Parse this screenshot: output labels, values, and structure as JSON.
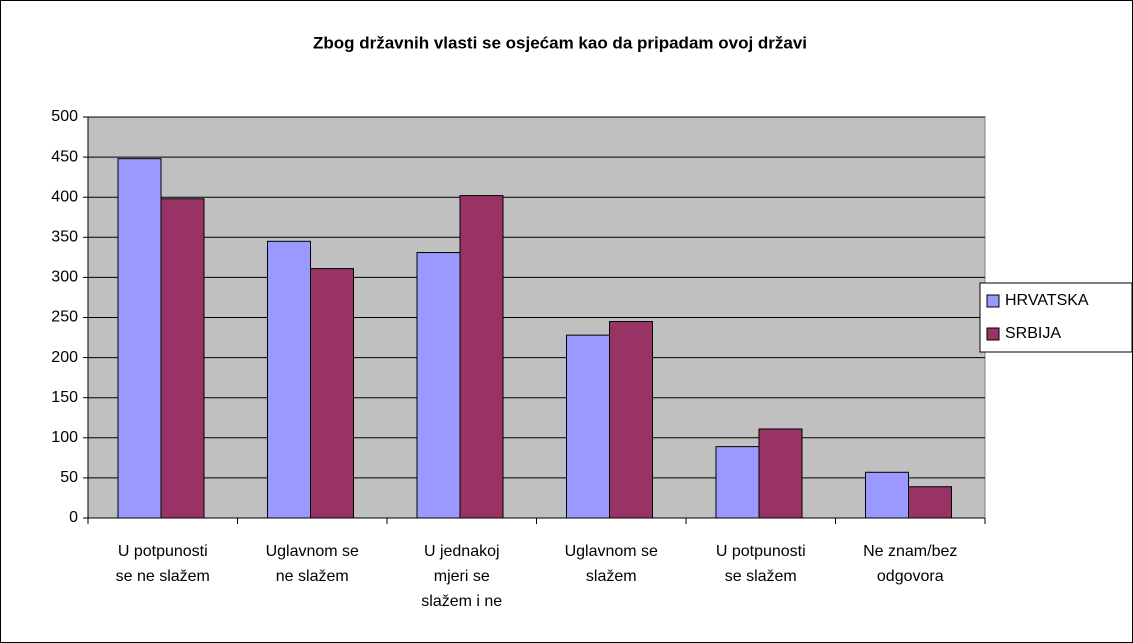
{
  "chart_data": {
    "type": "bar",
    "title": "Zbog državnih vlasti se osjećam kao da pripadam ovoj državi",
    "categories": [
      "U potpunosti se ne slažem",
      "Uglavnom se ne slažem",
      "U jednakoj mjeri se slažem i ne",
      "Uglavnom se slažem",
      "U potpunosti se slažem",
      "Ne znam/bez odgovora"
    ],
    "series": [
      {
        "name": "HRVATSKA",
        "color": "#9999ff",
        "values": [
          448,
          345,
          331,
          228,
          89,
          57
        ]
      },
      {
        "name": "SRBIJA",
        "color": "#993366",
        "values": [
          398,
          311,
          402,
          245,
          111,
          39
        ]
      }
    ],
    "ylim": [
      0,
      500
    ],
    "yticks": [
      0,
      50,
      100,
      150,
      200,
      250,
      300,
      350,
      400,
      450,
      500
    ],
    "grid": true,
    "legend": "right"
  }
}
